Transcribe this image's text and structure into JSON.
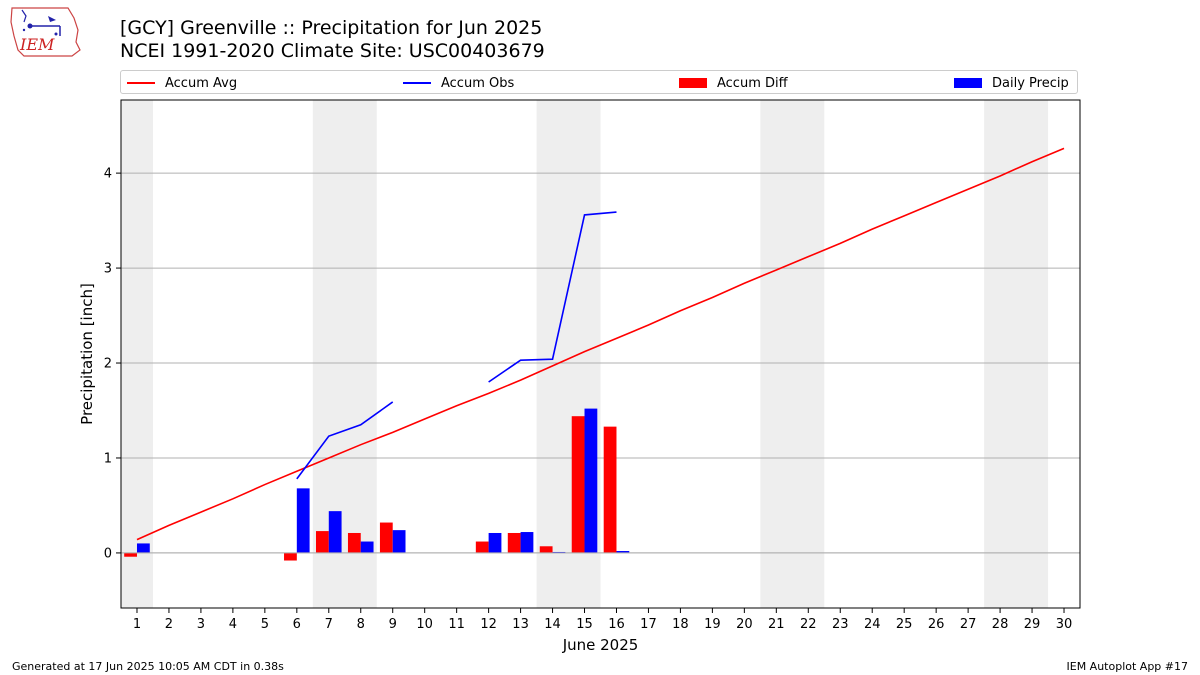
{
  "header": {
    "title_line1": "[GCY] Greenville :: Precipitation for Jun 2025",
    "title_line2": "NCEI 1991-2020 Climate Site: USC00403679",
    "logo_text": "IEM"
  },
  "legend": {
    "accum_avg": "Accum Avg",
    "accum_obs": "Accum Obs",
    "accum_diff": "Accum Diff",
    "daily_precip": "Daily Precip"
  },
  "footer": {
    "left": "Generated at 17 Jun 2025 10:05 AM CDT in 0.38s",
    "right": "IEM Autoplot App #17"
  },
  "colors": {
    "avg": "#ff0000",
    "obs": "#0000ff",
    "diff": "#ff0000",
    "daily": "#0000ff",
    "weekend_shade": "#eeeeee",
    "grid": "#b0b0b0"
  },
  "chart_data": {
    "type": "bar",
    "xlabel": "June 2025",
    "ylabel": "Precipitation [inch]",
    "xlim": [
      0.5,
      30.5
    ],
    "ylim": [
      -0.58,
      4.77
    ],
    "yticks": [
      0,
      1,
      2,
      3,
      4
    ],
    "x": [
      1,
      2,
      3,
      4,
      5,
      6,
      7,
      8,
      9,
      10,
      11,
      12,
      13,
      14,
      15,
      16,
      17,
      18,
      19,
      20,
      21,
      22,
      23,
      24,
      25,
      26,
      27,
      28,
      29,
      30
    ],
    "weekend_shading": [
      [
        0.5,
        1.5
      ],
      [
        6.5,
        8.5
      ],
      [
        13.5,
        15.5
      ],
      [
        20.5,
        22.5
      ],
      [
        27.5,
        29.5
      ]
    ],
    "grid": "horizontal",
    "legend_position": "top",
    "series": [
      {
        "name": "Accum Avg",
        "type": "line",
        "x": [
          1,
          2,
          3,
          4,
          5,
          6,
          7,
          8,
          9,
          10,
          11,
          12,
          13,
          14,
          15,
          16,
          17,
          18,
          19,
          20,
          21,
          22,
          23,
          24,
          25,
          26,
          27,
          28,
          29,
          30
        ],
        "values": [
          0.14,
          0.29,
          0.43,
          0.57,
          0.72,
          0.86,
          1.0,
          1.14,
          1.27,
          1.41,
          1.55,
          1.68,
          1.82,
          1.97,
          2.12,
          2.26,
          2.4,
          2.55,
          2.69,
          2.84,
          2.98,
          3.12,
          3.26,
          3.41,
          3.55,
          3.69,
          3.83,
          3.97,
          4.12,
          4.26
        ]
      },
      {
        "name": "Accum Obs",
        "type": "line",
        "segments": [
          {
            "x": [
              6,
              7,
              8,
              9
            ],
            "values": [
              0.78,
              1.23,
              1.35,
              1.59
            ]
          },
          {
            "x": [
              12,
              13,
              14,
              15,
              16
            ],
            "values": [
              1.8,
              2.03,
              2.04,
              3.56,
              3.59
            ]
          }
        ]
      },
      {
        "name": "Accum Diff",
        "type": "bar",
        "x": [
          1,
          6,
          7,
          8,
          9,
          12,
          13,
          14,
          15,
          16
        ],
        "values": [
          -0.04,
          -0.08,
          0.23,
          0.21,
          0.32,
          0.12,
          0.21,
          0.07,
          1.44,
          1.33
        ]
      },
      {
        "name": "Daily Precip",
        "type": "bar",
        "x": [
          1,
          6,
          7,
          8,
          9,
          12,
          13,
          14,
          15,
          16
        ],
        "values": [
          0.1,
          0.68,
          0.44,
          0.12,
          0.24,
          0.21,
          0.22,
          0.01,
          1.52,
          0.02
        ]
      }
    ]
  }
}
